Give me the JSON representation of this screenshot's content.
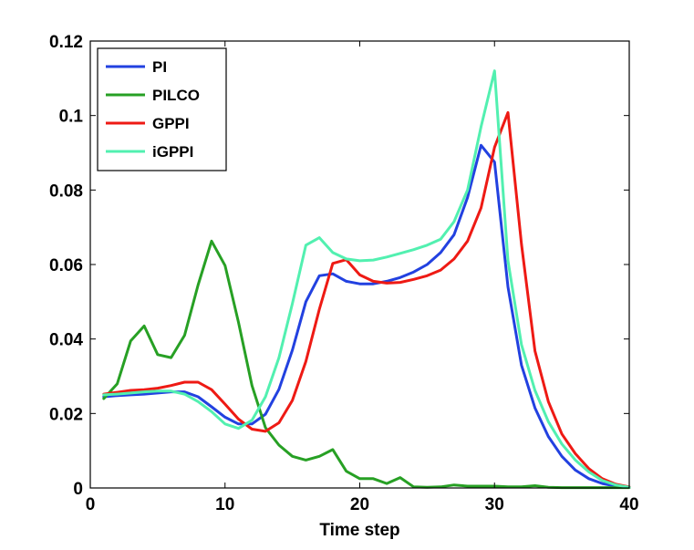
{
  "chart_data": {
    "type": "line",
    "title": "",
    "xlabel": "Time step",
    "ylabel": "",
    "xlim": [
      0,
      40
    ],
    "ylim": [
      0,
      0.12
    ],
    "xticks": [
      0,
      10,
      20,
      30,
      40
    ],
    "yticks": [
      0,
      0.02,
      0.04,
      0.06,
      0.08,
      0.1,
      0.12
    ],
    "xtick_labels": [
      "0",
      "10",
      "20",
      "30",
      "40"
    ],
    "ytick_labels": [
      "0",
      "0.02",
      "0.04",
      "0.06",
      "0.08",
      "0.1",
      "0.12"
    ],
    "grid": false,
    "legend_position": "top-left",
    "series": [
      {
        "name": "PI",
        "color": "#2241e0",
        "x": [
          1,
          2,
          3,
          4,
          5,
          6,
          7,
          8,
          9,
          10,
          11,
          12,
          13,
          14,
          15,
          16,
          17,
          18,
          19,
          20,
          21,
          22,
          23,
          24,
          25,
          26,
          27,
          28,
          29,
          30,
          31,
          32,
          33,
          34,
          35,
          36,
          37,
          38,
          39,
          40
        ],
        "values": [
          0.0245,
          0.0248,
          0.025,
          0.0252,
          0.0255,
          0.0258,
          0.0258,
          0.0245,
          0.0218,
          0.019,
          0.0172,
          0.0172,
          0.0198,
          0.0265,
          0.037,
          0.05,
          0.057,
          0.0575,
          0.0555,
          0.0548,
          0.0548,
          0.0555,
          0.0565,
          0.058,
          0.06,
          0.0632,
          0.068,
          0.078,
          0.092,
          0.0875,
          0.054,
          0.033,
          0.0215,
          0.0138,
          0.0085,
          0.0048,
          0.0025,
          0.0012,
          0.0005,
          0.0002
        ]
      },
      {
        "name": "PILCO",
        "color": "#27a024",
        "x": [
          1,
          2,
          3,
          4,
          5,
          6,
          7,
          8,
          9,
          10,
          11,
          12,
          13,
          14,
          15,
          16,
          17,
          18,
          19,
          20,
          21,
          22,
          23,
          24,
          25,
          26,
          27,
          28,
          29,
          30,
          31,
          32,
          33,
          34,
          35,
          36,
          37,
          38,
          39,
          40
        ],
        "values": [
          0.024,
          0.028,
          0.0395,
          0.0435,
          0.0358,
          0.035,
          0.041,
          0.0545,
          0.0663,
          0.0597,
          0.0445,
          0.0275,
          0.0162,
          0.0115,
          0.0085,
          0.0075,
          0.0085,
          0.0103,
          0.0045,
          0.0025,
          0.0025,
          0.0012,
          0.0028,
          0.0003,
          0.0002,
          0.0003,
          0.0008,
          0.0005,
          0.0005,
          0.0005,
          0.0003,
          0.0003,
          0.0006,
          0.0002,
          0.0001,
          0.0001,
          0.0001,
          0.0001,
          0.0001,
          0.0001
        ]
      },
      {
        "name": "GPPI",
        "color": "#ee1a14",
        "x": [
          1,
          2,
          3,
          4,
          5,
          6,
          7,
          8,
          9,
          10,
          11,
          12,
          13,
          14,
          15,
          16,
          17,
          18,
          19,
          20,
          21,
          22,
          23,
          24,
          25,
          26,
          27,
          28,
          29,
          30,
          31,
          32,
          33,
          34,
          35,
          36,
          37,
          38,
          39,
          40
        ],
        "values": [
          0.0252,
          0.0257,
          0.0262,
          0.0264,
          0.0268,
          0.0275,
          0.0284,
          0.0284,
          0.0264,
          0.0225,
          0.0185,
          0.0158,
          0.0152,
          0.0175,
          0.0235,
          0.034,
          0.048,
          0.0603,
          0.0613,
          0.0572,
          0.0555,
          0.055,
          0.0552,
          0.056,
          0.057,
          0.0585,
          0.0615,
          0.0663,
          0.0752,
          0.0915,
          0.1008,
          0.0655,
          0.0368,
          0.0232,
          0.0145,
          0.0092,
          0.0052,
          0.0025,
          0.001,
          0.0003
        ]
      },
      {
        "name": "iGPPI",
        "color": "#52f0b0",
        "x": [
          1,
          2,
          3,
          4,
          5,
          6,
          7,
          8,
          9,
          10,
          11,
          12,
          13,
          14,
          15,
          16,
          17,
          18,
          19,
          20,
          21,
          22,
          23,
          24,
          25,
          26,
          27,
          28,
          29,
          30,
          31,
          32,
          33,
          34,
          35,
          36,
          37,
          38,
          39,
          40
        ],
        "values": [
          0.025,
          0.0252,
          0.0255,
          0.0258,
          0.026,
          0.026,
          0.0252,
          0.0232,
          0.0205,
          0.0172,
          0.016,
          0.0182,
          0.0245,
          0.035,
          0.0495,
          0.0652,
          0.0672,
          0.0632,
          0.0615,
          0.061,
          0.0612,
          0.062,
          0.063,
          0.064,
          0.0652,
          0.0668,
          0.0715,
          0.08,
          0.097,
          0.112,
          0.061,
          0.0385,
          0.0262,
          0.0178,
          0.0118,
          0.0075,
          0.0043,
          0.002,
          0.0008,
          0.0002
        ]
      }
    ]
  }
}
